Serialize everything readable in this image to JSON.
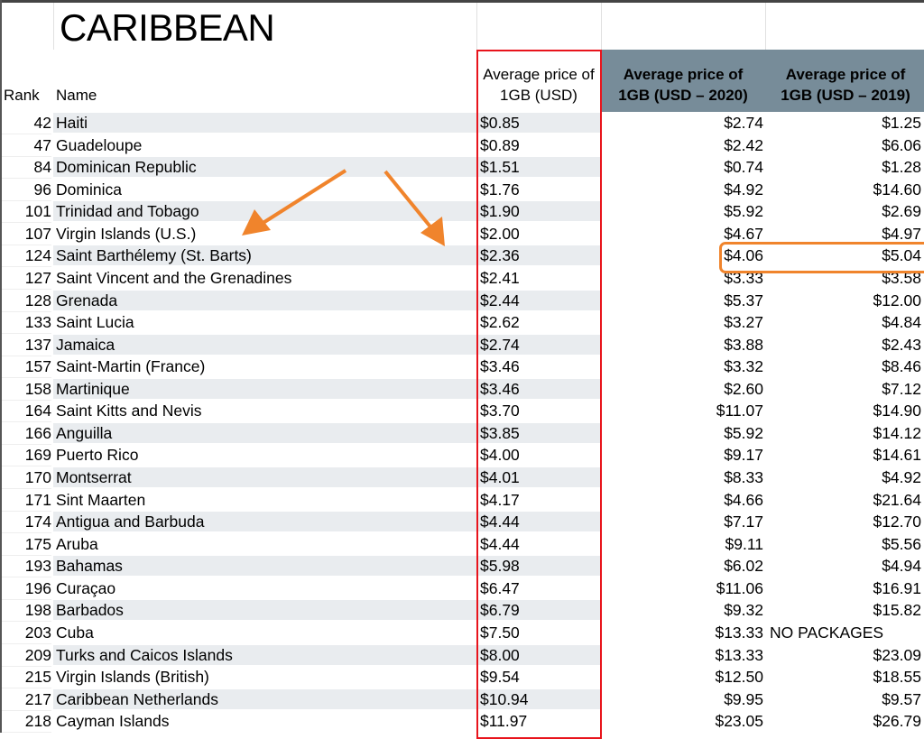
{
  "title": "CARIBBEAN",
  "headers": {
    "rank": "Rank",
    "name": "Name",
    "price": "Average price of 1GB (USD)",
    "price_2020": "Average price of 1GB (USD – 2020)",
    "price_2019": "Average price of 1GB (USD – 2019)"
  },
  "colors": {
    "highlight_red": "#e8141c",
    "annotation_orange": "#f0842c",
    "header_gray": "#778c99",
    "row_shade": "#e9ecef"
  },
  "highlighted_row_index": 6,
  "rows": [
    {
      "rank": "42",
      "name": "Haiti",
      "price": "$0.85",
      "p2020": "$2.74",
      "p2019": "$1.25"
    },
    {
      "rank": "47",
      "name": "Guadeloupe",
      "price": "$0.89",
      "p2020": "$2.42",
      "p2019": "$6.06"
    },
    {
      "rank": "84",
      "name": "Dominican Republic",
      "price": "$1.51",
      "p2020": "$0.74",
      "p2019": "$1.28"
    },
    {
      "rank": "96",
      "name": "Dominica",
      "price": "$1.76",
      "p2020": "$4.92",
      "p2019": "$14.60"
    },
    {
      "rank": "101",
      "name": "Trinidad and Tobago",
      "price": "$1.90",
      "p2020": "$5.92",
      "p2019": "$2.69"
    },
    {
      "rank": "107",
      "name": "Virgin Islands (U.S.)",
      "price": "$2.00",
      "p2020": "$4.67",
      "p2019": "$4.97"
    },
    {
      "rank": "124",
      "name": "Saint Barthélemy (St. Barts)",
      "price": "$2.36",
      "p2020": "$4.06",
      "p2019": "$5.04"
    },
    {
      "rank": "127",
      "name": "Saint Vincent and the Grenadines",
      "price": "$2.41",
      "p2020": "$3.33",
      "p2019": "$3.58"
    },
    {
      "rank": "128",
      "name": "Grenada",
      "price": "$2.44",
      "p2020": "$5.37",
      "p2019": "$12.00"
    },
    {
      "rank": "133",
      "name": "Saint Lucia",
      "price": "$2.62",
      "p2020": "$3.27",
      "p2019": "$4.84"
    },
    {
      "rank": "137",
      "name": "Jamaica",
      "price": "$2.74",
      "p2020": "$3.88",
      "p2019": "$2.43"
    },
    {
      "rank": "157",
      "name": "Saint-Martin (France)",
      "price": "$3.46",
      "p2020": "$3.32",
      "p2019": "$8.46"
    },
    {
      "rank": "158",
      "name": "Martinique",
      "price": "$3.46",
      "p2020": "$2.60",
      "p2019": "$7.12"
    },
    {
      "rank": "164",
      "name": "Saint Kitts and Nevis",
      "price": "$3.70",
      "p2020": "$11.07",
      "p2019": "$14.90"
    },
    {
      "rank": "166",
      "name": "Anguilla",
      "price": "$3.85",
      "p2020": "$5.92",
      "p2019": "$14.12"
    },
    {
      "rank": "169",
      "name": "Puerto Rico",
      "price": "$4.00",
      "p2020": "$9.17",
      "p2019": "$14.61"
    },
    {
      "rank": "170",
      "name": "Montserrat",
      "price": "$4.01",
      "p2020": "$8.33",
      "p2019": "$4.92"
    },
    {
      "rank": "171",
      "name": "Sint Maarten",
      "price": "$4.17",
      "p2020": "$4.66",
      "p2019": "$21.64"
    },
    {
      "rank": "174",
      "name": "Antigua and Barbuda",
      "price": "$4.44",
      "p2020": "$7.17",
      "p2019": "$12.70"
    },
    {
      "rank": "175",
      "name": "Aruba",
      "price": "$4.44",
      "p2020": "$9.11",
      "p2019": "$5.56"
    },
    {
      "rank": "193",
      "name": "Bahamas",
      "price": "$5.98",
      "p2020": "$6.02",
      "p2019": "$4.94"
    },
    {
      "rank": "196",
      "name": "Curaçao",
      "price": "$6.47",
      "p2020": "$11.06",
      "p2019": "$16.91"
    },
    {
      "rank": "198",
      "name": "Barbados",
      "price": "$6.79",
      "p2020": "$9.32",
      "p2019": "$15.82"
    },
    {
      "rank": "203",
      "name": "Cuba",
      "price": "$7.50",
      "p2020": "$13.33",
      "p2019": "NO PACKAGES"
    },
    {
      "rank": "209",
      "name": "Turks and Caicos Islands",
      "price": "$8.00",
      "p2020": "$13.33",
      "p2019": "$23.09"
    },
    {
      "rank": "215",
      "name": "Virgin Islands (British)",
      "price": "$9.54",
      "p2020": "$12.50",
      "p2019": "$18.55"
    },
    {
      "rank": "217",
      "name": "Caribbean Netherlands",
      "price": "$10.94",
      "p2020": "$9.95",
      "p2019": "$9.57"
    },
    {
      "rank": "218",
      "name": "Cayman Islands",
      "price": "$11.97",
      "p2020": "$23.05",
      "p2019": "$26.79"
    }
  ]
}
